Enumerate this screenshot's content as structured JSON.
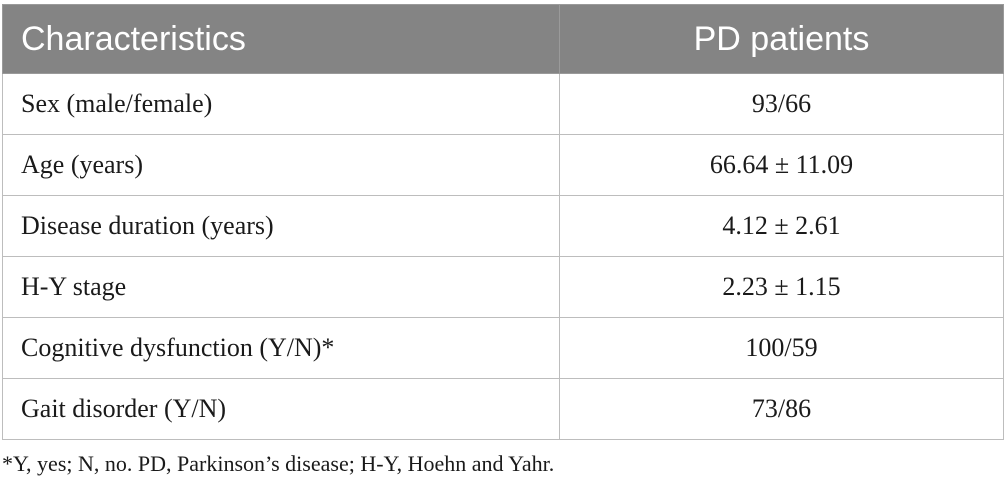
{
  "table": {
    "headers": [
      "Characteristics",
      "PD patients"
    ],
    "rows": [
      {
        "label": "Sex (male/female)",
        "value": "93/66"
      },
      {
        "label": "Age (years)",
        "value": "66.64 ± 11.09"
      },
      {
        "label": "Disease duration (years)",
        "value": "4.12 ± 2.61"
      },
      {
        "label": "H-Y stage",
        "value": "2.23 ± 1.15"
      },
      {
        "label": "Cognitive dysfunction (Y/N)*",
        "value": "100/59"
      },
      {
        "label": "Gait disorder (Y/N)",
        "value": "73/86"
      }
    ]
  },
  "footnote": "*Y, yes; N, no. PD, Parkinson’s disease; H-Y, Hoehn and Yahr.",
  "colors": {
    "header_bg": "#848484",
    "header_text": "#ffffff",
    "grid": "#bdbdbd"
  }
}
